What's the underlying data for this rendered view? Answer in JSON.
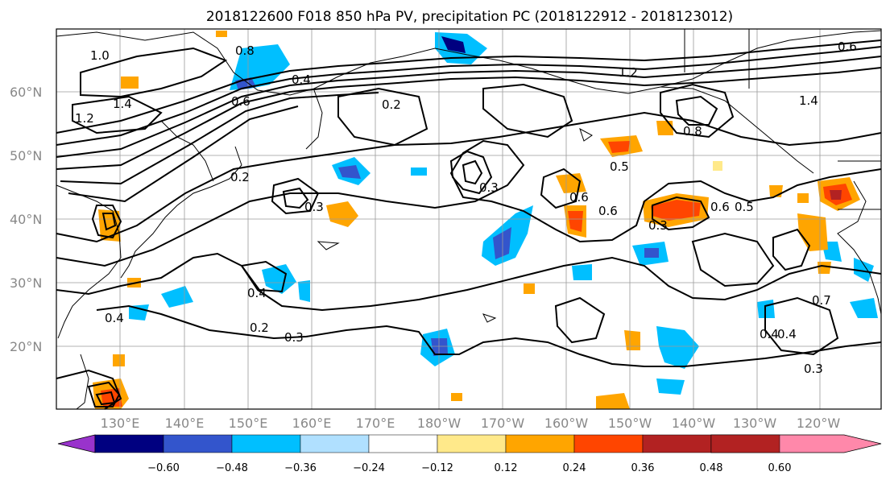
{
  "title": "2018122600 F018 850 hPa PV, precipitation PC (2018122912 - 2018123012)",
  "lat_labels": [
    "60°N",
    "50°N",
    "40°N",
    "30°N",
    "20°N"
  ],
  "lon_labels": [
    "130°E",
    "140°E",
    "150°E",
    "160°E",
    "170°E",
    "180°W",
    "170°W",
    "160°W",
    "150°W",
    "140°W",
    "130°W",
    "120°W"
  ],
  "contour_labels": [
    "1.0",
    "0.8",
    "1.4",
    "1.2",
    "0.4",
    "0.6",
    "0.2",
    "0.3",
    "0.5",
    "0.8",
    "1.4",
    "0.4",
    "0.7",
    "0.4",
    "0.3",
    "0.3",
    "0.4",
    "0.2",
    "0.3",
    "0.6",
    "0.6",
    "0.5",
    "0.6",
    "0.3",
    "0.4",
    "1.2",
    "0.6",
    "0.2"
  ],
  "colorbar": {
    "ticks": [
      "−0.60",
      "−0.48",
      "−0.36",
      "−0.24",
      "−0.12",
      "0.12",
      "0.24",
      "0.36",
      "0.48",
      "0.60"
    ],
    "colors": [
      "#9933cc",
      "#000080",
      "#3355cc",
      "#00bfff",
      "#b0e0ff",
      "#ffffff",
      "#ffe98a",
      "#ffa500",
      "#ff4500",
      "#b22222",
      "#ff88aa"
    ]
  },
  "palette": {
    "cold_1": "#00bfff",
    "cold_2": "#3355cc",
    "cold_3": "#000080",
    "cold_4": "#9933cc",
    "warm_1": "#ffe98a",
    "warm_2": "#ffa500",
    "warm_3": "#ff4500",
    "warm_4": "#b22222"
  }
}
